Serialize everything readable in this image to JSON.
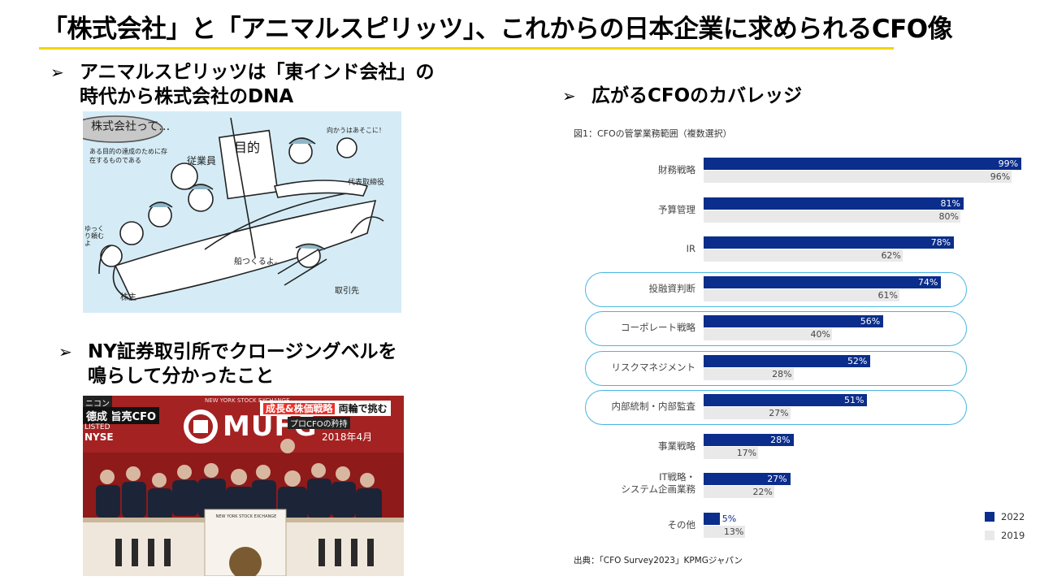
{
  "title": "「株式会社」と「アニマルスピリッツ」、これからの日本企業に求められるCFO像",
  "bullets": {
    "arrow": "➢",
    "b1": "アニマルスピリッツは「東インド会社」の\n時代から株式会社のDNA",
    "b2": "NY証券取引所でクロージングベルを\n鳴らして分かったこと",
    "b3": "広がるCFOのカバレッジ"
  },
  "sketch": {
    "heading": "株式会社って…",
    "note": "ある目的の達成のために存在するものである",
    "flag": "目的",
    "employees": "従業員",
    "director": "代表取締役",
    "shareholder": "株主",
    "counterparty": "取引先",
    "bubble1": "向かうはあそこに！",
    "bubble2": "船つくるよ。",
    "bubble3": "ゆっくり頼むよ"
  },
  "photo": {
    "corner": "ニコン",
    "person": "德成 旨亮CFO",
    "listed": "LISTED",
    "nyse": "NYSE",
    "headline_hl": "成長&株価戦略",
    "headline": "両輪で挑む",
    "sub": "プロCFOの矜持",
    "date": "2018年4月",
    "logo": "MUFG",
    "exchange": "NEW YORK STOCK EXCHANGE",
    "podium": "NEW YORK STOCK EXCHANGE"
  },
  "colors": {
    "accent": "#f2d400",
    "series2022": "#0b2d8b",
    "series2019": "#e9e9e9",
    "highlight": "#49b6e0"
  },
  "chart_data": {
    "type": "bar",
    "orientation": "horizontal",
    "title": "図1：CFOの管掌業務範囲（複数選択）",
    "source": "出典：「CFO Survey2023」KPMGジャパン",
    "categories": [
      "財務戦略",
      "予算管理",
      "IR",
      "投融資判断",
      "コーポレート戦略",
      "リスクマネジメント",
      "内部統制・内部監査",
      "事業戦略",
      "IT戦略・\nシステム企画業務",
      "その他"
    ],
    "series": [
      {
        "name": "2022",
        "values": [
          99,
          81,
          78,
          74,
          56,
          52,
          51,
          28,
          27,
          5
        ]
      },
      {
        "name": "2019",
        "values": [
          96,
          80,
          62,
          61,
          40,
          28,
          27,
          17,
          22,
          13
        ]
      }
    ],
    "highlighted": [
      "投融資判断",
      "コーポレート戦略",
      "リスクマネジメント",
      "内部統制・内部監査"
    ],
    "value_suffix": "%",
    "xlim": [
      0,
      100
    ],
    "legend": "bottom-right"
  }
}
